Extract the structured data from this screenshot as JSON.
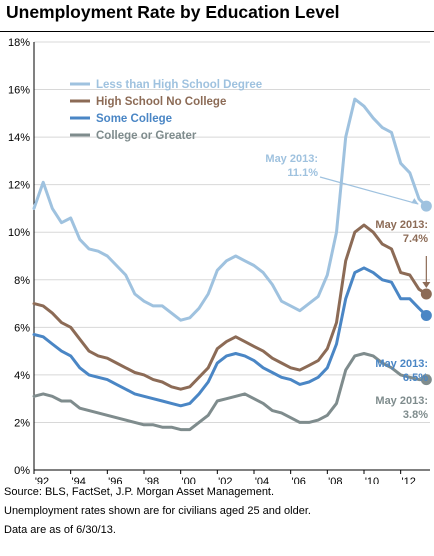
{
  "chart_data": {
    "type": "line",
    "title": "Unemployment Rate by Education Level",
    "xlabel": "",
    "ylabel": "",
    "xlim": [
      1992.0,
      2013.6
    ],
    "ylim": [
      0,
      18
    ],
    "y_ticks": [
      "0%",
      "2%",
      "4%",
      "6%",
      "8%",
      "10%",
      "12%",
      "14%",
      "16%",
      "18%"
    ],
    "x_ticks": [
      "'92",
      "'94",
      "'96",
      "'98",
      "'00",
      "'02",
      "'04",
      "'06",
      "'08",
      "'10",
      "'12"
    ],
    "grid": true,
    "legend_position": "top-left",
    "series": [
      {
        "name": "Less than High School Degree",
        "color": "#9fc2df",
        "x": [
          1992.0,
          1992.5,
          1993.0,
          1993.5,
          1994.0,
          1994.5,
          1995.0,
          1995.5,
          1996.0,
          1996.5,
          1997.0,
          1997.5,
          1998.0,
          1998.5,
          1999.0,
          1999.5,
          2000.0,
          2000.5,
          2001.0,
          2001.5,
          2002.0,
          2002.5,
          2003.0,
          2003.5,
          2004.0,
          2004.5,
          2005.0,
          2005.5,
          2006.0,
          2006.5,
          2007.0,
          2007.5,
          2008.0,
          2008.5,
          2009.0,
          2009.5,
          2010.0,
          2010.5,
          2011.0,
          2011.5,
          2012.0,
          2012.5,
          2013.0,
          2013.4
        ],
        "values": [
          11.0,
          12.1,
          11.0,
          10.4,
          10.6,
          9.7,
          9.3,
          9.2,
          9.0,
          8.6,
          8.2,
          7.4,
          7.1,
          6.9,
          6.9,
          6.6,
          6.3,
          6.4,
          6.8,
          7.4,
          8.4,
          8.8,
          9.0,
          8.8,
          8.6,
          8.3,
          7.8,
          7.1,
          6.9,
          6.7,
          7.0,
          7.3,
          8.2,
          10.0,
          14.0,
          15.6,
          15.3,
          14.8,
          14.4,
          14.2,
          12.9,
          12.5,
          11.4,
          11.1
        ]
      },
      {
        "name": "High School No College",
        "color": "#8c6b56",
        "x": [
          1992.0,
          1992.5,
          1993.0,
          1993.5,
          1994.0,
          1994.5,
          1995.0,
          1995.5,
          1996.0,
          1996.5,
          1997.0,
          1997.5,
          1998.0,
          1998.5,
          1999.0,
          1999.5,
          2000.0,
          2000.5,
          2001.0,
          2001.5,
          2002.0,
          2002.5,
          2003.0,
          2003.5,
          2004.0,
          2004.5,
          2005.0,
          2005.5,
          2006.0,
          2006.5,
          2007.0,
          2007.5,
          2008.0,
          2008.5,
          2009.0,
          2009.5,
          2010.0,
          2010.5,
          2011.0,
          2011.5,
          2012.0,
          2012.5,
          2013.0,
          2013.4
        ],
        "values": [
          7.0,
          6.9,
          6.6,
          6.2,
          6.0,
          5.5,
          5.0,
          4.8,
          4.7,
          4.5,
          4.3,
          4.1,
          4.0,
          3.8,
          3.7,
          3.5,
          3.4,
          3.5,
          3.9,
          4.3,
          5.1,
          5.4,
          5.6,
          5.4,
          5.2,
          5.0,
          4.7,
          4.5,
          4.3,
          4.2,
          4.4,
          4.6,
          5.1,
          6.2,
          8.8,
          10.0,
          10.3,
          10.0,
          9.5,
          9.3,
          8.3,
          8.2,
          7.6,
          7.4
        ]
      },
      {
        "name": "Some College",
        "color": "#4a86c5",
        "x": [
          1992.0,
          1992.5,
          1993.0,
          1993.5,
          1994.0,
          1994.5,
          1995.0,
          1995.5,
          1996.0,
          1996.5,
          1997.0,
          1997.5,
          1998.0,
          1998.5,
          1999.0,
          1999.5,
          2000.0,
          2000.5,
          2001.0,
          2001.5,
          2002.0,
          2002.5,
          2003.0,
          2003.5,
          2004.0,
          2004.5,
          2005.0,
          2005.5,
          2006.0,
          2006.5,
          2007.0,
          2007.5,
          2008.0,
          2008.5,
          2009.0,
          2009.5,
          2010.0,
          2010.5,
          2011.0,
          2011.5,
          2012.0,
          2012.5,
          2013.0,
          2013.4
        ],
        "values": [
          5.7,
          5.6,
          5.3,
          5.0,
          4.8,
          4.3,
          4.0,
          3.9,
          3.8,
          3.6,
          3.4,
          3.2,
          3.1,
          3.0,
          2.9,
          2.8,
          2.7,
          2.8,
          3.2,
          3.7,
          4.5,
          4.8,
          4.9,
          4.8,
          4.6,
          4.3,
          4.1,
          3.9,
          3.8,
          3.6,
          3.7,
          3.9,
          4.3,
          5.3,
          7.2,
          8.3,
          8.5,
          8.3,
          8.0,
          7.9,
          7.2,
          7.2,
          6.8,
          6.5
        ]
      },
      {
        "name": "College or Greater",
        "color": "#7f8c8d",
        "x": [
          1992.0,
          1992.5,
          1993.0,
          1993.5,
          1994.0,
          1994.5,
          1995.0,
          1995.5,
          1996.0,
          1996.5,
          1997.0,
          1997.5,
          1998.0,
          1998.5,
          1999.0,
          1999.5,
          2000.0,
          2000.5,
          2001.0,
          2001.5,
          2002.0,
          2002.5,
          2003.0,
          2003.5,
          2004.0,
          2004.5,
          2005.0,
          2005.5,
          2006.0,
          2006.5,
          2007.0,
          2007.5,
          2008.0,
          2008.5,
          2009.0,
          2009.5,
          2010.0,
          2010.5,
          2011.0,
          2011.5,
          2012.0,
          2012.5,
          2013.0,
          2013.4
        ],
        "values": [
          3.1,
          3.2,
          3.1,
          2.9,
          2.9,
          2.6,
          2.5,
          2.4,
          2.3,
          2.2,
          2.1,
          2.0,
          1.9,
          1.9,
          1.8,
          1.8,
          1.7,
          1.7,
          2.0,
          2.3,
          2.9,
          3.0,
          3.1,
          3.2,
          3.0,
          2.8,
          2.5,
          2.4,
          2.2,
          2.0,
          2.0,
          2.1,
          2.3,
          2.8,
          4.2,
          4.8,
          4.9,
          4.8,
          4.5,
          4.3,
          4.0,
          3.9,
          3.8,
          3.8
        ]
      }
    ],
    "annotations": [
      {
        "series": 0,
        "label_line1": "May 2013:",
        "label_line2": "11.1%",
        "x": 2013.4,
        "y": 11.1
      },
      {
        "series": 1,
        "label_line1": "May 2013:",
        "label_line2": "7.4%",
        "x": 2013.4,
        "y": 7.4
      },
      {
        "series": 2,
        "label_line1": "May 2013:",
        "label_line2": "6.5%",
        "x": 2013.4,
        "y": 6.5
      },
      {
        "series": 3,
        "label_line1": "May 2013:",
        "label_line2": "3.8%",
        "x": 2013.4,
        "y": 3.8
      }
    ]
  },
  "footnotes": [
    "Source: BLS, FactSet, J.P. Morgan Asset Management.",
    "Unemployment rates shown are for civilians aged 25 and older.",
    "Data are as of 6/30/13."
  ]
}
